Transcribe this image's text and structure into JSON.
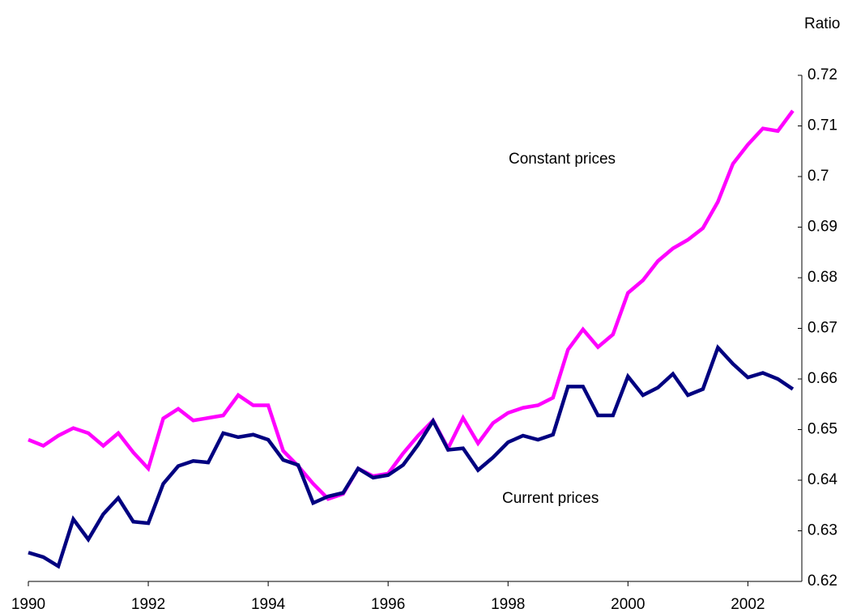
{
  "chart_data": {
    "type": "line",
    "y_label": "Ratio",
    "x": [
      1990,
      1990.25,
      1990.5,
      1990.75,
      1991,
      1991.25,
      1991.5,
      1991.75,
      1992,
      1992.25,
      1992.5,
      1992.75,
      1993,
      1993.25,
      1993.5,
      1993.75,
      1994,
      1994.25,
      1994.5,
      1994.75,
      1995,
      1995.25,
      1995.5,
      1995.75,
      1996,
      1996.25,
      1996.5,
      1996.75,
      1997,
      1997.25,
      1997.5,
      1997.75,
      1998,
      1998.25,
      1998.5,
      1998.75,
      1999,
      1999.25,
      1999.5,
      1999.75,
      2000,
      2000.25,
      2000.5,
      2000.75,
      2001,
      2001.25,
      2001.5,
      2001.75,
      2002,
      2002.25,
      2002.5,
      2002.75
    ],
    "series": [
      {
        "name": "Constant prices",
        "color": "#ff00ff",
        "values": [
          0.648,
          0.6468,
          0.6488,
          0.6503,
          0.6493,
          0.6468,
          0.6493,
          0.6455,
          0.6423,
          0.6522,
          0.6541,
          0.6518,
          0.6523,
          0.6528,
          0.6568,
          0.6548,
          0.6548,
          0.6458,
          0.6428,
          0.6393,
          0.6363,
          0.6373,
          0.6423,
          0.6408,
          0.6413,
          0.6453,
          0.6488,
          0.6518,
          0.6463,
          0.6523,
          0.6473,
          0.6513,
          0.6533,
          0.6543,
          0.6548,
          0.6563,
          0.6658,
          0.6698,
          0.6663,
          0.6688,
          0.677,
          0.6795,
          0.6833,
          0.6858,
          0.6875,
          0.6898,
          0.695,
          0.7025,
          0.7063,
          0.7095,
          0.709,
          0.713
        ]
      },
      {
        "name": "Current prices",
        "color": "#000080",
        "values": [
          0.6257,
          0.6248,
          0.623,
          0.6323,
          0.6283,
          0.6333,
          0.6365,
          0.6318,
          0.6315,
          0.6393,
          0.6428,
          0.6438,
          0.6435,
          0.6493,
          0.6485,
          0.649,
          0.648,
          0.644,
          0.643,
          0.6355,
          0.6368,
          0.6375,
          0.6423,
          0.6405,
          0.641,
          0.643,
          0.647,
          0.6517,
          0.646,
          0.6463,
          0.642,
          0.6445,
          0.6475,
          0.6488,
          0.648,
          0.649,
          0.6585,
          0.6585,
          0.6528,
          0.6528,
          0.6605,
          0.6568,
          0.6583,
          0.661,
          0.6568,
          0.658,
          0.6662,
          0.663,
          0.6603,
          0.6612,
          0.66,
          0.658
        ]
      }
    ],
    "xlim": [
      1990,
      2002.9
    ],
    "xticks": [
      1990,
      1992,
      1994,
      1996,
      1998,
      2000,
      2002
    ],
    "ylim": [
      0.62,
      0.72
    ],
    "yticks": [
      0.62,
      0.63,
      0.64,
      0.65,
      0.66,
      0.67,
      0.68,
      0.69,
      0.7,
      0.71,
      0.72
    ]
  }
}
